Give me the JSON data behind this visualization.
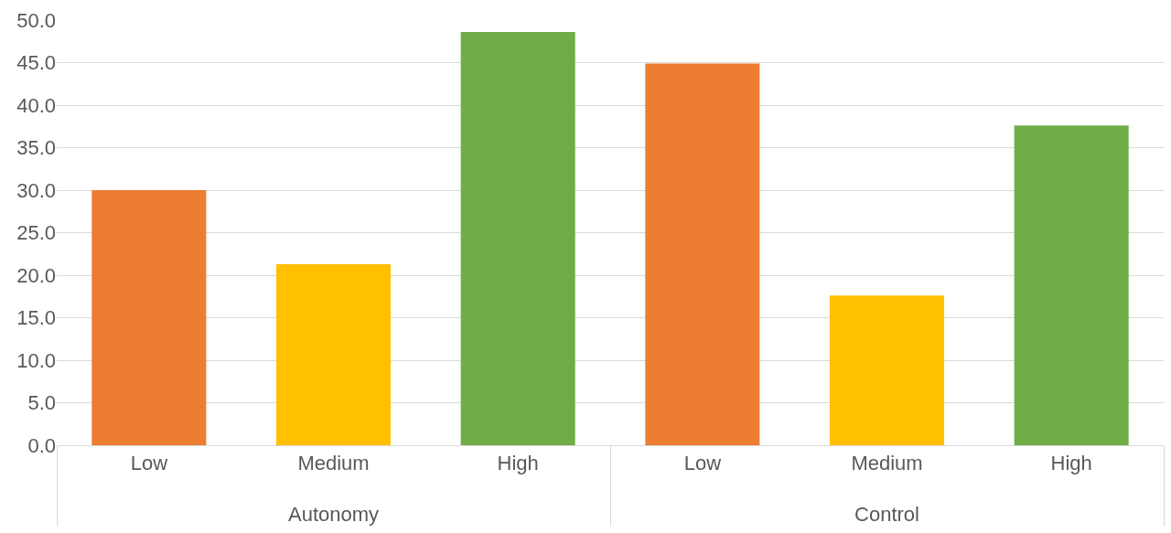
{
  "chart_data": {
    "type": "bar",
    "categories": [
      "Low",
      "Medium",
      "High",
      "Low",
      "Medium",
      "High"
    ],
    "values": [
      30.0,
      21.3,
      48.6,
      44.9,
      17.6,
      37.6
    ],
    "colors": [
      "#ed7d31",
      "#ffc000",
      "#70ad47",
      "#ed7d31",
      "#ffc000",
      "#70ad47"
    ],
    "annotations": [
      "Autonomy",
      "Control"
    ],
    "ylim": [
      0,
      50
    ],
    "yticks": [
      {
        "value": 0,
        "label": "0.0"
      },
      {
        "value": 5,
        "label": "5.0"
      },
      {
        "value": 10,
        "label": "10.0"
      },
      {
        "value": 15,
        "label": "15.0"
      },
      {
        "value": 20,
        "label": "20.0"
      },
      {
        "value": 25,
        "label": "25.0"
      },
      {
        "value": 30,
        "label": "30.0"
      },
      {
        "value": 35,
        "label": "35.0"
      },
      {
        "value": 40,
        "label": "40.0"
      },
      {
        "value": 45,
        "label": "45.0"
      },
      {
        "value": 50,
        "label": "50.0"
      }
    ],
    "grid": "y"
  }
}
